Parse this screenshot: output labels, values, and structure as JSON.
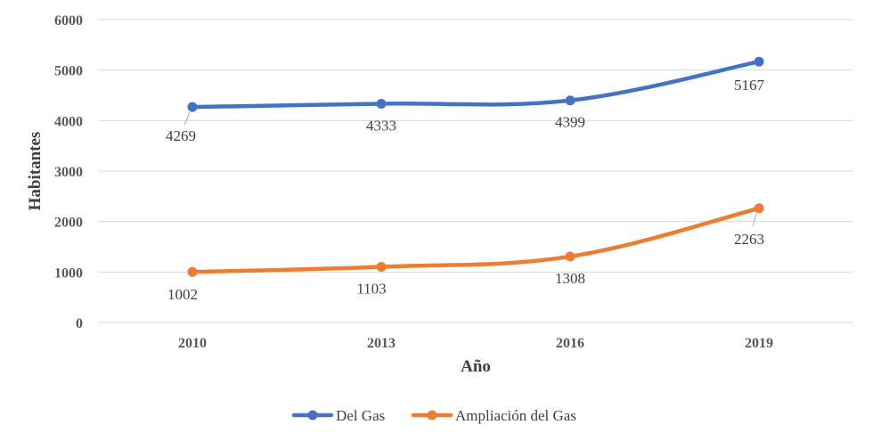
{
  "chart_data": {
    "type": "line",
    "title": "",
    "xlabel": "Año",
    "ylabel": "Habitantes",
    "categories": [
      "2010",
      "2013",
      "2016",
      "2019"
    ],
    "ylim": [
      0,
      6000
    ],
    "yticks": [
      "0",
      "1000",
      "2000",
      "3000",
      "4000",
      "5000",
      "6000"
    ],
    "grid": true,
    "legend_position": "bottom",
    "series": [
      {
        "name": "Del Gas",
        "color": "#4472C4",
        "values": [
          4269,
          4333,
          4399,
          5167
        ],
        "labels": [
          "4269",
          "4333",
          "4399",
          "5167"
        ]
      },
      {
        "name": "Ampliación del Gas",
        "color": "#ED7D31",
        "values": [
          1002,
          1103,
          1308,
          2263
        ],
        "labels": [
          "1002",
          "1103",
          "1308",
          "2263"
        ]
      }
    ]
  }
}
